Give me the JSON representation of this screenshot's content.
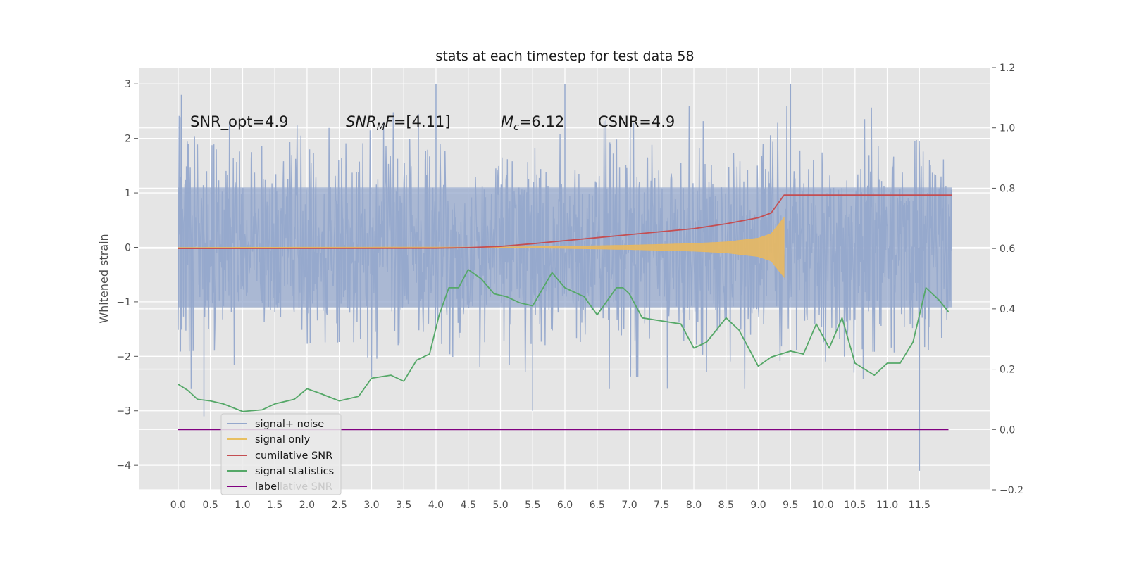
{
  "chart_data": {
    "type": "line",
    "title": "stats at each timestep for test data 58",
    "ylabel": "Whitened strain",
    "xlabel": "",
    "xlim": [
      -0.6,
      12.6
    ],
    "ylim": [
      -4.45,
      3.3
    ],
    "y2lim": [
      -0.2,
      1.2
    ],
    "grid": true,
    "x_ticks": [
      "0.0",
      "0.5",
      "1.0",
      "1.5",
      "2.0",
      "2.5",
      "3.0",
      "3.5",
      "4.0",
      "4.5",
      "5.0",
      "5.5",
      "6.0",
      "6.5",
      "7.0",
      "7.5",
      "8.0",
      "8.5",
      "9.0",
      "9.5",
      "10.0",
      "10.5",
      "11.0",
      "11.5"
    ],
    "y_ticks": [
      "3",
      "2",
      "1",
      "0",
      "−1",
      "−2",
      "−3",
      "−4"
    ],
    "y2_ticks": [
      "1.2",
      "1.0",
      "0.8",
      "0.6",
      "0.4",
      "0.2",
      "0.0",
      "−0.2"
    ],
    "annotations": [
      "SNR_opt=4.9",
      "SNR_MF=[4.11]",
      "M_c=6.12",
      "CSNR=4.9"
    ],
    "legend": {
      "location": "lower-left",
      "entries": [
        "signal+ noise",
        "signal only",
        "cumilative SNR",
        "signal statistics",
        "label"
      ],
      "overlap_text": "lative SNR"
    },
    "series": [
      {
        "name": "signal+ noise",
        "axis": "left",
        "color": "#95a8cc",
        "t_range": [
          0.0,
          12.0
        ],
        "amplitude": 1.1,
        "spikes": [
          [
            0.05,
            2.8
          ],
          [
            4.0,
            3.0
          ],
          [
            9.5,
            3.0
          ],
          [
            6.0,
            3.0
          ],
          [
            11.5,
            -4.1
          ],
          [
            5.5,
            -3.0
          ],
          [
            0.4,
            -3.1
          ]
        ]
      },
      {
        "name": "signal only",
        "axis": "left",
        "color": "#e8b860",
        "t_range": [
          0.0,
          9.4
        ],
        "envelope": [
          [
            0.0,
            0.0
          ],
          [
            5.0,
            0.005
          ],
          [
            6.0,
            0.02
          ],
          [
            7.0,
            0.04
          ],
          [
            8.0,
            0.07
          ],
          [
            8.5,
            0.1
          ],
          [
            9.0,
            0.17
          ],
          [
            9.2,
            0.25
          ],
          [
            9.4,
            0.55
          ]
        ]
      },
      {
        "name": "cumilative SNR",
        "axis": "right",
        "color": "#c44e52",
        "x": [
          0.0,
          4.0,
          4.5,
          5.0,
          5.5,
          6.0,
          6.5,
          7.0,
          7.5,
          8.0,
          8.5,
          9.0,
          9.2,
          9.4,
          12.0
        ],
        "y": [
          0.6,
          0.601,
          0.603,
          0.607,
          0.616,
          0.626,
          0.636,
          0.646,
          0.656,
          0.666,
          0.682,
          0.702,
          0.718,
          0.7775,
          0.7775
        ]
      },
      {
        "name": "signal statistics",
        "axis": "right",
        "color": "#55a868",
        "x": [
          0.0,
          0.15,
          0.3,
          0.5,
          0.7,
          1.0,
          1.3,
          1.5,
          1.8,
          2.0,
          2.2,
          2.5,
          2.8,
          3.0,
          3.3,
          3.5,
          3.7,
          3.9,
          4.05,
          4.2,
          4.35,
          4.5,
          4.7,
          4.9,
          5.1,
          5.3,
          5.5,
          5.8,
          6.0,
          6.3,
          6.5,
          6.8,
          6.9,
          7.0,
          7.2,
          7.5,
          7.8,
          8.0,
          8.2,
          8.5,
          8.7,
          9.0,
          9.2,
          9.5,
          9.7,
          9.9,
          10.1,
          10.3,
          10.5,
          10.8,
          11.0,
          11.2,
          11.4,
          11.6,
          11.8,
          11.95
        ],
        "y": [
          0.15,
          0.13,
          0.1,
          0.095,
          0.085,
          0.06,
          0.065,
          0.085,
          0.1,
          0.135,
          0.12,
          0.095,
          0.11,
          0.17,
          0.18,
          0.16,
          0.23,
          0.25,
          0.38,
          0.47,
          0.47,
          0.53,
          0.5,
          0.45,
          0.44,
          0.42,
          0.41,
          0.52,
          0.47,
          0.44,
          0.38,
          0.47,
          0.47,
          0.45,
          0.37,
          0.36,
          0.35,
          0.27,
          0.29,
          0.37,
          0.33,
          0.21,
          0.24,
          0.26,
          0.25,
          0.35,
          0.27,
          0.37,
          0.22,
          0.18,
          0.22,
          0.22,
          0.29,
          0.47,
          0.43,
          0.39
        ]
      },
      {
        "name": "label",
        "axis": "right",
        "color": "#800080",
        "x": [
          0.0,
          11.95
        ],
        "y": [
          0.0,
          0.0
        ]
      }
    ]
  }
}
